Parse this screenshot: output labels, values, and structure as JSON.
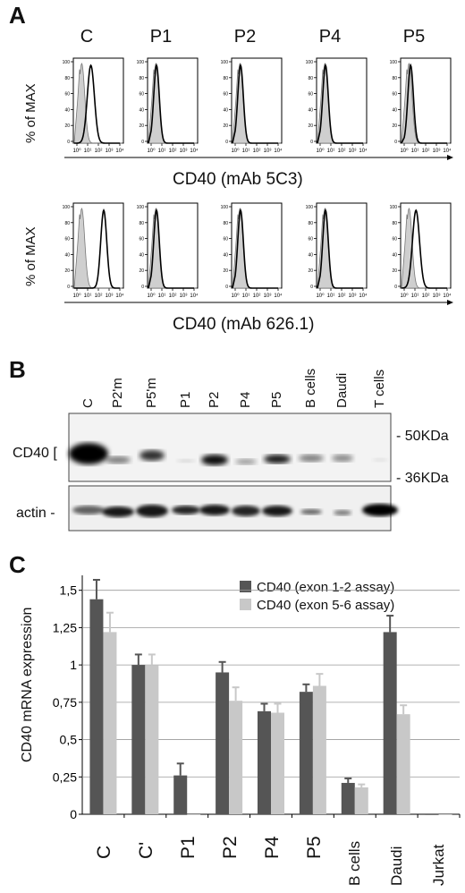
{
  "panelA": {
    "letter": "A",
    "ylabel": "% of MAX",
    "samples": [
      "C",
      "P1",
      "P2",
      "P4",
      "P5"
    ],
    "row1_xlabel": "CD40 (mAb 5C3)",
    "row2_xlabel": "CD40 (mAb 626.1)",
    "yticks": [
      "100",
      "80",
      "60",
      "40",
      "20",
      "0"
    ],
    "xticks": [
      "10⁰",
      "10¹",
      "10²",
      "10³",
      "10⁴"
    ],
    "row1_peaks": [
      1.3,
      0.5,
      0.5,
      0.5,
      0.6
    ],
    "row2_peaks": [
      2.5,
      0.5,
      0.5,
      0.5,
      1.1
    ]
  },
  "panelB": {
    "letter": "B",
    "lanes": [
      "C",
      "P2'm",
      "P5'm",
      "P1",
      "P2",
      "P4",
      "P5",
      "B cells",
      "Daudi",
      "T cells"
    ],
    "cd40_label": "CD40 [",
    "actin_label": "actin -",
    "markers": [
      "- 50KDa",
      "- 36KDa"
    ]
  },
  "panelC": {
    "letter": "C",
    "chart_data": {
      "type": "bar",
      "ylabel": "CD40 mRNA expression",
      "categories": [
        "C",
        "C'",
        "P1",
        "P2",
        "P4",
        "P5",
        "B cells",
        "Daudi",
        "Jurkat"
      ],
      "ylim": [
        0,
        1.6
      ],
      "yticks": [
        "0",
        "0,25",
        "0,5",
        "0,75",
        "1",
        "1,25",
        "1,5"
      ],
      "series": [
        {
          "name": "CD40 (exon 1-2 assay)",
          "color": "#555555",
          "values": [
            1.44,
            1.0,
            0.26,
            0.95,
            0.69,
            0.82,
            0.21,
            1.22,
            0.0
          ],
          "errors": [
            0.13,
            0.07,
            0.08,
            0.07,
            0.05,
            0.05,
            0.03,
            0.11,
            0.0
          ]
        },
        {
          "name": "CD40 (exon 5-6 assay)",
          "color": "#c8c8c8",
          "values": [
            1.22,
            1.0,
            0.0,
            0.76,
            0.68,
            0.86,
            0.18,
            0.67,
            0.0
          ],
          "errors": [
            0.13,
            0.07,
            0.0,
            0.09,
            0.06,
            0.08,
            0.02,
            0.06,
            0.0
          ]
        }
      ]
    }
  }
}
